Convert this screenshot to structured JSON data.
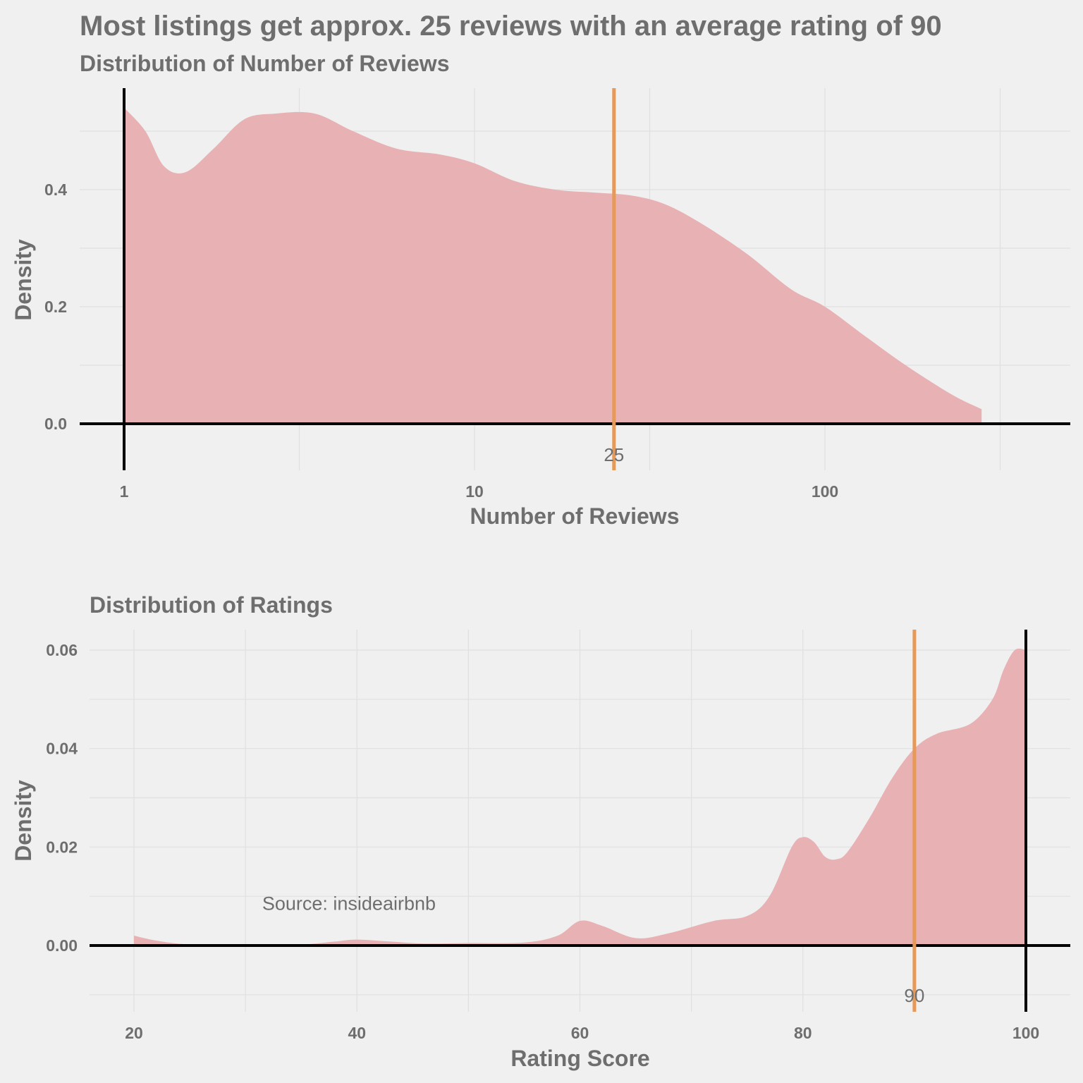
{
  "title": "Most listings get approx. 25 reviews with an average rating of 90",
  "colors": {
    "density_fill": "#e8b1b3",
    "reference_line": "#e69a5a",
    "axis_line": "#000000",
    "text": "#6e6e6e",
    "background": "#f0f0f0"
  },
  "chart_data": [
    {
      "type": "area",
      "title": "Distribution of Number of Reviews",
      "xlabel": "Number of Reviews",
      "ylabel": "Density",
      "x_scale": "log10",
      "xlim": [
        1,
        300
      ],
      "ylim": [
        -0.08,
        0.57
      ],
      "x_ticks": [
        1,
        10,
        100
      ],
      "x_tick_labels": [
        "1",
        "10",
        "100"
      ],
      "y_ticks": [
        0.0,
        0.2,
        0.4
      ],
      "y_tick_labels": [
        "0.0",
        "0.2",
        "0.4"
      ],
      "grid": true,
      "series": [
        {
          "x": [
            1,
            1.15,
            1.3,
            1.5,
            1.8,
            2.2,
            2.7,
            3.5,
            4.5,
            6,
            8,
            10,
            13,
            17,
            22,
            28,
            35,
            45,
            60,
            80,
            100,
            130,
            170,
            230,
            280
          ],
          "y": [
            0.54,
            0.5,
            0.44,
            0.43,
            0.47,
            0.52,
            0.53,
            0.53,
            0.5,
            0.47,
            0.46,
            0.445,
            0.415,
            0.4,
            0.395,
            0.39,
            0.375,
            0.34,
            0.29,
            0.23,
            0.2,
            0.15,
            0.1,
            0.05,
            0.025
          ]
        }
      ],
      "reference_line": {
        "x": 25,
        "label": "25"
      },
      "axis_lines": {
        "x": 1,
        "y": 0
      }
    },
    {
      "type": "area",
      "title": "Distribution of Ratings",
      "xlabel": "Rating Score",
      "ylabel": "Density",
      "xlim": [
        16,
        101
      ],
      "ylim": [
        -0.01,
        0.065
      ],
      "x_ticks": [
        20,
        40,
        60,
        80,
        100
      ],
      "x_tick_labels": [
        "20",
        "40",
        "60",
        "80",
        "100"
      ],
      "y_ticks": [
        0.0,
        0.02,
        0.04,
        0.06
      ],
      "y_tick_labels": [
        "0.00",
        "0.02",
        "0.04",
        "0.06"
      ],
      "grid": true,
      "series": [
        {
          "x": [
            20,
            22,
            25,
            30,
            35,
            38,
            40,
            43,
            46,
            50,
            55,
            58,
            60,
            62,
            65,
            68,
            72,
            75,
            77,
            79,
            80,
            81,
            82,
            83,
            84,
            86,
            88,
            90,
            92,
            95,
            97,
            98,
            99,
            100
          ],
          "y": [
            0.002,
            0.001,
            0.0002,
            0.0001,
            0.0002,
            0.0008,
            0.0012,
            0.0008,
            0.0004,
            0.0005,
            0.0006,
            0.002,
            0.005,
            0.004,
            0.0015,
            0.0025,
            0.005,
            0.006,
            0.01,
            0.02,
            0.022,
            0.021,
            0.018,
            0.0175,
            0.019,
            0.026,
            0.034,
            0.04,
            0.043,
            0.045,
            0.05,
            0.056,
            0.06,
            0.06
          ]
        }
      ],
      "reference_line": {
        "x": 90,
        "label": "90"
      },
      "axis_lines": {
        "x": 100,
        "y": 0
      },
      "annotation": {
        "text": "Source: insideairbnb",
        "x": 31.5,
        "y": 0.0085
      }
    }
  ]
}
